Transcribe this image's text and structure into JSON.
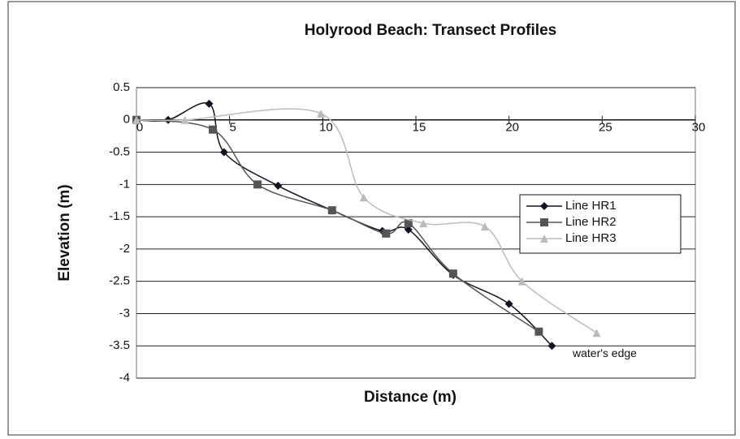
{
  "chart_data": {
    "type": "line",
    "title": "Holyrood Beach: Transect Profiles",
    "xlabel": "Distance (m)",
    "ylabel": "Elevation (m)",
    "xlim": [
      0,
      30
    ],
    "xticks": [
      0,
      5,
      10,
      15,
      20,
      25,
      30
    ],
    "ylim": [
      -4,
      0.5
    ],
    "yticks": [
      0.5,
      0,
      -0.5,
      -1,
      -1.5,
      -2,
      -2.5,
      -3,
      -3.5,
      -4
    ],
    "grid": true,
    "legend": "right",
    "annotation": "water's edge",
    "series": [
      {
        "name": "Line HR1",
        "color": "#111122",
        "marker": "diamond",
        "x": [
          0,
          1.7,
          3.9,
          4.7,
          7.6,
          10.5,
          13.2,
          14.6,
          17.0,
          20.0,
          22.3
        ],
        "values": [
          0,
          0,
          0.25,
          -0.5,
          -1.02,
          -1.4,
          -1.72,
          -1.7,
          -2.4,
          -2.85,
          -3.5
        ]
      },
      {
        "name": "Line HR2",
        "color": "#555555",
        "marker": "square",
        "x": [
          0,
          4.1,
          6.5,
          10.5,
          13.4,
          14.6,
          17.0,
          21.6
        ],
        "values": [
          0,
          -0.15,
          -1.0,
          -1.4,
          -1.76,
          -1.6,
          -2.38,
          -3.28
        ]
      },
      {
        "name": "Line HR3",
        "color": "#bbbbbb",
        "marker": "triangle",
        "x": [
          0,
          2.6,
          9.9,
          12.2,
          15.4,
          18.7,
          20.7,
          24.7
        ],
        "values": [
          0,
          0,
          0.1,
          -1.2,
          -1.6,
          -1.65,
          -2.5,
          -3.3
        ]
      }
    ]
  }
}
